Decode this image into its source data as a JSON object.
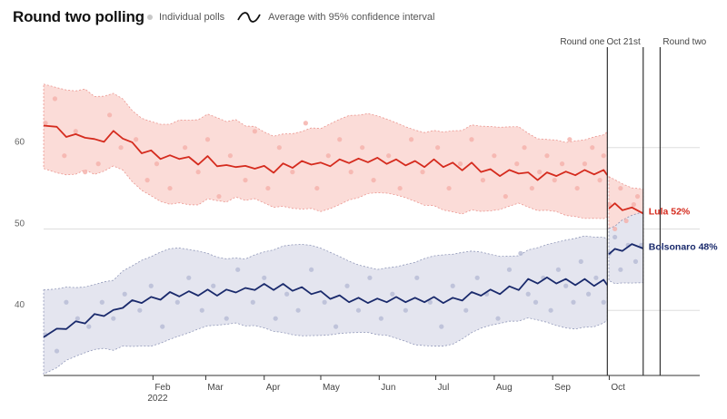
{
  "title": "Round two polling",
  "legend": {
    "polls_label": "Individual polls",
    "average_label": "Average with 95% confidence interval"
  },
  "colors": {
    "lula": "#d52b1e",
    "lula_band": "#fbdcd8",
    "lula_dots": "#f4b3ad",
    "bolsonaro": "#1a2a6c",
    "bolsonaro_band": "#e4e5ef",
    "bolsonaro_dots": "#b9bdd6",
    "grid": "#dddddd",
    "marker": "#333333"
  },
  "chart_data": {
    "type": "line",
    "title": "Round two polling",
    "x_unit": "days since 2022-01-01",
    "xlim": [
      -27,
      321
    ],
    "ylim": [
      32,
      72
    ],
    "yticks": [
      40,
      50,
      60
    ],
    "ytick_labels": [
      "40",
      "50",
      "60"
    ],
    "xticks": [
      {
        "pos": 31,
        "label": "Feb",
        "sub": "2022"
      },
      {
        "pos": 59,
        "label": "Mar",
        "sub": ""
      },
      {
        "pos": 90,
        "label": "Apr",
        "sub": ""
      },
      {
        "pos": 120,
        "label": "May",
        "sub": ""
      },
      {
        "pos": 151,
        "label": "Jun",
        "sub": ""
      },
      {
        "pos": 181,
        "label": "Jul",
        "sub": ""
      },
      {
        "pos": 212,
        "label": "Aug",
        "sub": ""
      },
      {
        "pos": 243,
        "label": "Sep",
        "sub": ""
      },
      {
        "pos": 273,
        "label": "Oct",
        "sub": ""
      }
    ],
    "markers": [
      {
        "x": 272,
        "label": "Round one",
        "label_side": "left"
      },
      {
        "x": 291,
        "label": "Oct 21st",
        "label_side": "left"
      },
      {
        "x": 300,
        "label": "Round two",
        "label_side": "right"
      }
    ],
    "break_at": 272,
    "series": [
      {
        "name": "Lula",
        "end_label": "Lula 52%",
        "ci_half_width": 4.8,
        "x": [
          -27,
          -20,
          -15,
          -10,
          -5,
          0,
          5,
          10,
          15,
          20,
          25,
          30,
          35,
          40,
          45,
          50,
          55,
          60,
          65,
          70,
          75,
          80,
          85,
          90,
          95,
          100,
          105,
          110,
          115,
          120,
          125,
          130,
          135,
          140,
          145,
          150,
          155,
          160,
          165,
          170,
          175,
          180,
          185,
          190,
          195,
          200,
          205,
          210,
          215,
          220,
          225,
          230,
          235,
          240,
          245,
          250,
          255,
          260,
          265,
          270,
          272,
          276,
          280,
          285,
          291
        ],
        "values": [
          63,
          62.2,
          61.6,
          61.3,
          61.5,
          60.7,
          61,
          61.7,
          61.4,
          60.3,
          59.6,
          59.3,
          58.9,
          58.7,
          58.9,
          58.5,
          58.2,
          58.6,
          58,
          57.5,
          57.9,
          57.4,
          57.7,
          57.4,
          57.2,
          57.7,
          57.8,
          58,
          58.2,
          57.8,
          58,
          58.2,
          58.4,
          58.3,
          58.5,
          58.4,
          58.3,
          58.2,
          58.1,
          58,
          57.9,
          58.2,
          57.9,
          57.8,
          57.5,
          57.8,
          57.3,
          57,
          56.8,
          56.9,
          57.1,
          56.6,
          56.3,
          56.6,
          56.8,
          56.7,
          56.9,
          56.9,
          57,
          56.9,
          56.9,
          52.8,
          52.6,
          52.3,
          52.2
        ]
      },
      {
        "name": "Bolsonaro",
        "end_label": "Bolsonaro 48%",
        "ci_half_width": 4.8,
        "x": [
          -27,
          -20,
          -15,
          -10,
          -5,
          0,
          5,
          10,
          15,
          20,
          25,
          30,
          35,
          40,
          45,
          50,
          55,
          60,
          65,
          70,
          75,
          80,
          85,
          90,
          95,
          100,
          105,
          110,
          115,
          120,
          125,
          130,
          135,
          140,
          145,
          150,
          155,
          160,
          165,
          170,
          175,
          180,
          185,
          190,
          195,
          200,
          205,
          210,
          215,
          220,
          225,
          230,
          235,
          240,
          245,
          250,
          255,
          260,
          265,
          270,
          272,
          276,
          280,
          285,
          291
        ],
        "values": [
          37,
          37.4,
          38,
          38.3,
          38.7,
          39.2,
          39.6,
          39.7,
          40.6,
          40.9,
          41.2,
          41.3,
          41.6,
          41.9,
          42,
          42,
          42.1,
          42.2,
          42.1,
          42.2,
          42.5,
          42.4,
          42.8,
          42.9,
          42.8,
          42.9,
          42.7,
          42.5,
          42.3,
          42,
          41.7,
          41.5,
          41.3,
          41.2,
          41.2,
          41.1,
          41.3,
          41.3,
          41.3,
          41.2,
          41.3,
          41.3,
          41.2,
          41.2,
          41.5,
          41.9,
          42.1,
          42.2,
          42.3,
          42.6,
          42.8,
          43.5,
          43.6,
          43.7,
          43.6,
          43.5,
          43.4,
          43.5,
          43.3,
          43.4,
          43.4,
          47.2,
          47.6,
          47.8,
          47.9
        ]
      }
    ],
    "polls": {
      "lula": [
        [
          -26,
          63
        ],
        [
          -21,
          66
        ],
        [
          -16,
          59
        ],
        [
          -10,
          62
        ],
        [
          -5,
          57
        ],
        [
          2,
          58
        ],
        [
          8,
          64
        ],
        [
          14,
          60
        ],
        [
          22,
          61
        ],
        [
          28,
          56
        ],
        [
          33,
          58
        ],
        [
          40,
          55
        ],
        [
          48,
          60
        ],
        [
          55,
          57
        ],
        [
          60,
          61
        ],
        [
          66,
          54
        ],
        [
          72,
          59
        ],
        [
          80,
          56
        ],
        [
          85,
          62
        ],
        [
          92,
          55
        ],
        [
          98,
          60
        ],
        [
          105,
          57
        ],
        [
          112,
          63
        ],
        [
          118,
          55
        ],
        [
          124,
          59
        ],
        [
          130,
          61
        ],
        [
          136,
          57
        ],
        [
          142,
          60
        ],
        [
          148,
          56
        ],
        [
          156,
          59
        ],
        [
          162,
          55
        ],
        [
          168,
          61
        ],
        [
          174,
          57
        ],
        [
          182,
          60
        ],
        [
          188,
          55
        ],
        [
          194,
          58
        ],
        [
          200,
          61
        ],
        [
          206,
          56
        ],
        [
          212,
          59
        ],
        [
          218,
          54
        ],
        [
          224,
          58
        ],
        [
          228,
          60
        ],
        [
          232,
          55
        ],
        [
          236,
          57
        ],
        [
          240,
          59
        ],
        [
          244,
          56
        ],
        [
          248,
          58
        ],
        [
          252,
          61
        ],
        [
          256,
          55
        ],
        [
          260,
          58
        ],
        [
          264,
          60
        ],
        [
          268,
          56
        ],
        [
          270,
          59
        ],
        [
          273,
          53
        ],
        [
          276,
          50
        ],
        [
          279,
          55
        ],
        [
          282,
          51
        ],
        [
          286,
          53
        ],
        [
          288,
          54
        ]
      ],
      "bolsonaro": [
        [
          -26,
          37
        ],
        [
          -20,
          35
        ],
        [
          -15,
          41
        ],
        [
          -9,
          39
        ],
        [
          -3,
          38
        ],
        [
          4,
          41
        ],
        [
          10,
          39
        ],
        [
          16,
          42
        ],
        [
          24,
          40
        ],
        [
          30,
          43
        ],
        [
          36,
          38
        ],
        [
          44,
          41
        ],
        [
          50,
          44
        ],
        [
          57,
          40
        ],
        [
          63,
          43
        ],
        [
          70,
          39
        ],
        [
          76,
          45
        ],
        [
          84,
          41
        ],
        [
          90,
          44
        ],
        [
          96,
          39
        ],
        [
          102,
          42
        ],
        [
          108,
          40
        ],
        [
          115,
          45
        ],
        [
          122,
          41
        ],
        [
          128,
          38
        ],
        [
          134,
          43
        ],
        [
          140,
          40
        ],
        [
          146,
          44
        ],
        [
          152,
          39
        ],
        [
          158,
          42
        ],
        [
          165,
          40
        ],
        [
          171,
          44
        ],
        [
          178,
          41
        ],
        [
          184,
          38
        ],
        [
          190,
          43
        ],
        [
          197,
          40
        ],
        [
          203,
          44
        ],
        [
          208,
          42
        ],
        [
          214,
          39
        ],
        [
          220,
          45
        ],
        [
          226,
          47
        ],
        [
          230,
          42
        ],
        [
          234,
          41
        ],
        [
          238,
          44
        ],
        [
          242,
          40
        ],
        [
          246,
          45
        ],
        [
          250,
          43
        ],
        [
          254,
          41
        ],
        [
          258,
          46
        ],
        [
          262,
          42
        ],
        [
          266,
          44
        ],
        [
          270,
          41
        ],
        [
          273,
          47
        ],
        [
          276,
          49
        ],
        [
          279,
          45
        ],
        [
          283,
          48
        ],
        [
          287,
          46
        ],
        [
          290,
          48
        ]
      ]
    }
  }
}
